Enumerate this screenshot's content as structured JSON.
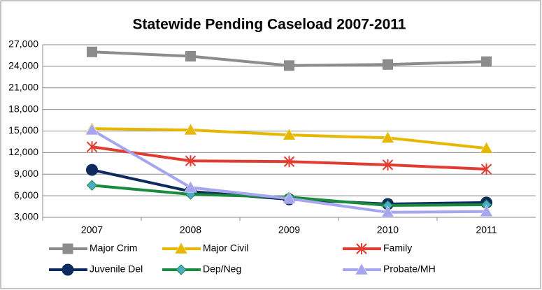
{
  "chart_data": {
    "type": "line",
    "title": "Statewide Pending Caseload 2007-2011",
    "categories": [
      "2007",
      "2008",
      "2009",
      "2010",
      "2011"
    ],
    "series": [
      {
        "name": "Major Crim",
        "color": "#8c8c8c",
        "marker": "square",
        "values": [
          26000,
          25400,
          24100,
          24250,
          24650
        ]
      },
      {
        "name": "Major Civil",
        "color": "#e6b800",
        "marker": "triangle",
        "values": [
          15330,
          15150,
          14450,
          14050,
          12600
        ]
      },
      {
        "name": "Family",
        "color": "#e03c31",
        "marker": "star",
        "values": [
          12800,
          10850,
          10750,
          10300,
          9700
        ]
      },
      {
        "name": "Juvenile Del",
        "color": "#0d2b5e",
        "marker": "circle",
        "values": [
          9600,
          6600,
          5500,
          4850,
          5050
        ]
      },
      {
        "name": "Dep/Neg",
        "color": "#1a8a3c",
        "marker": "diamond",
        "values": [
          7450,
          6200,
          5800,
          4650,
          4750
        ]
      },
      {
        "name": "Probate/MH",
        "color": "#a6a6f0",
        "marker": "triangle",
        "values": [
          15150,
          7150,
          5600,
          3700,
          3800
        ]
      }
    ],
    "ylim": [
      3000,
      27000
    ],
    "yticks": [
      {
        "value": 3000,
        "label": "3,000"
      },
      {
        "value": 6000,
        "label": "6,000"
      },
      {
        "value": 9000,
        "label": "9,000"
      },
      {
        "value": 12000,
        "label": "12,000"
      },
      {
        "value": 15000,
        "label": "15,000"
      },
      {
        "value": 18000,
        "label": "18,000"
      },
      {
        "value": 21000,
        "label": "21,000"
      },
      {
        "value": 24000,
        "label": "24,000"
      },
      {
        "value": 27000,
        "label": "27,000"
      }
    ],
    "grid": true,
    "legend": "bottom"
  }
}
